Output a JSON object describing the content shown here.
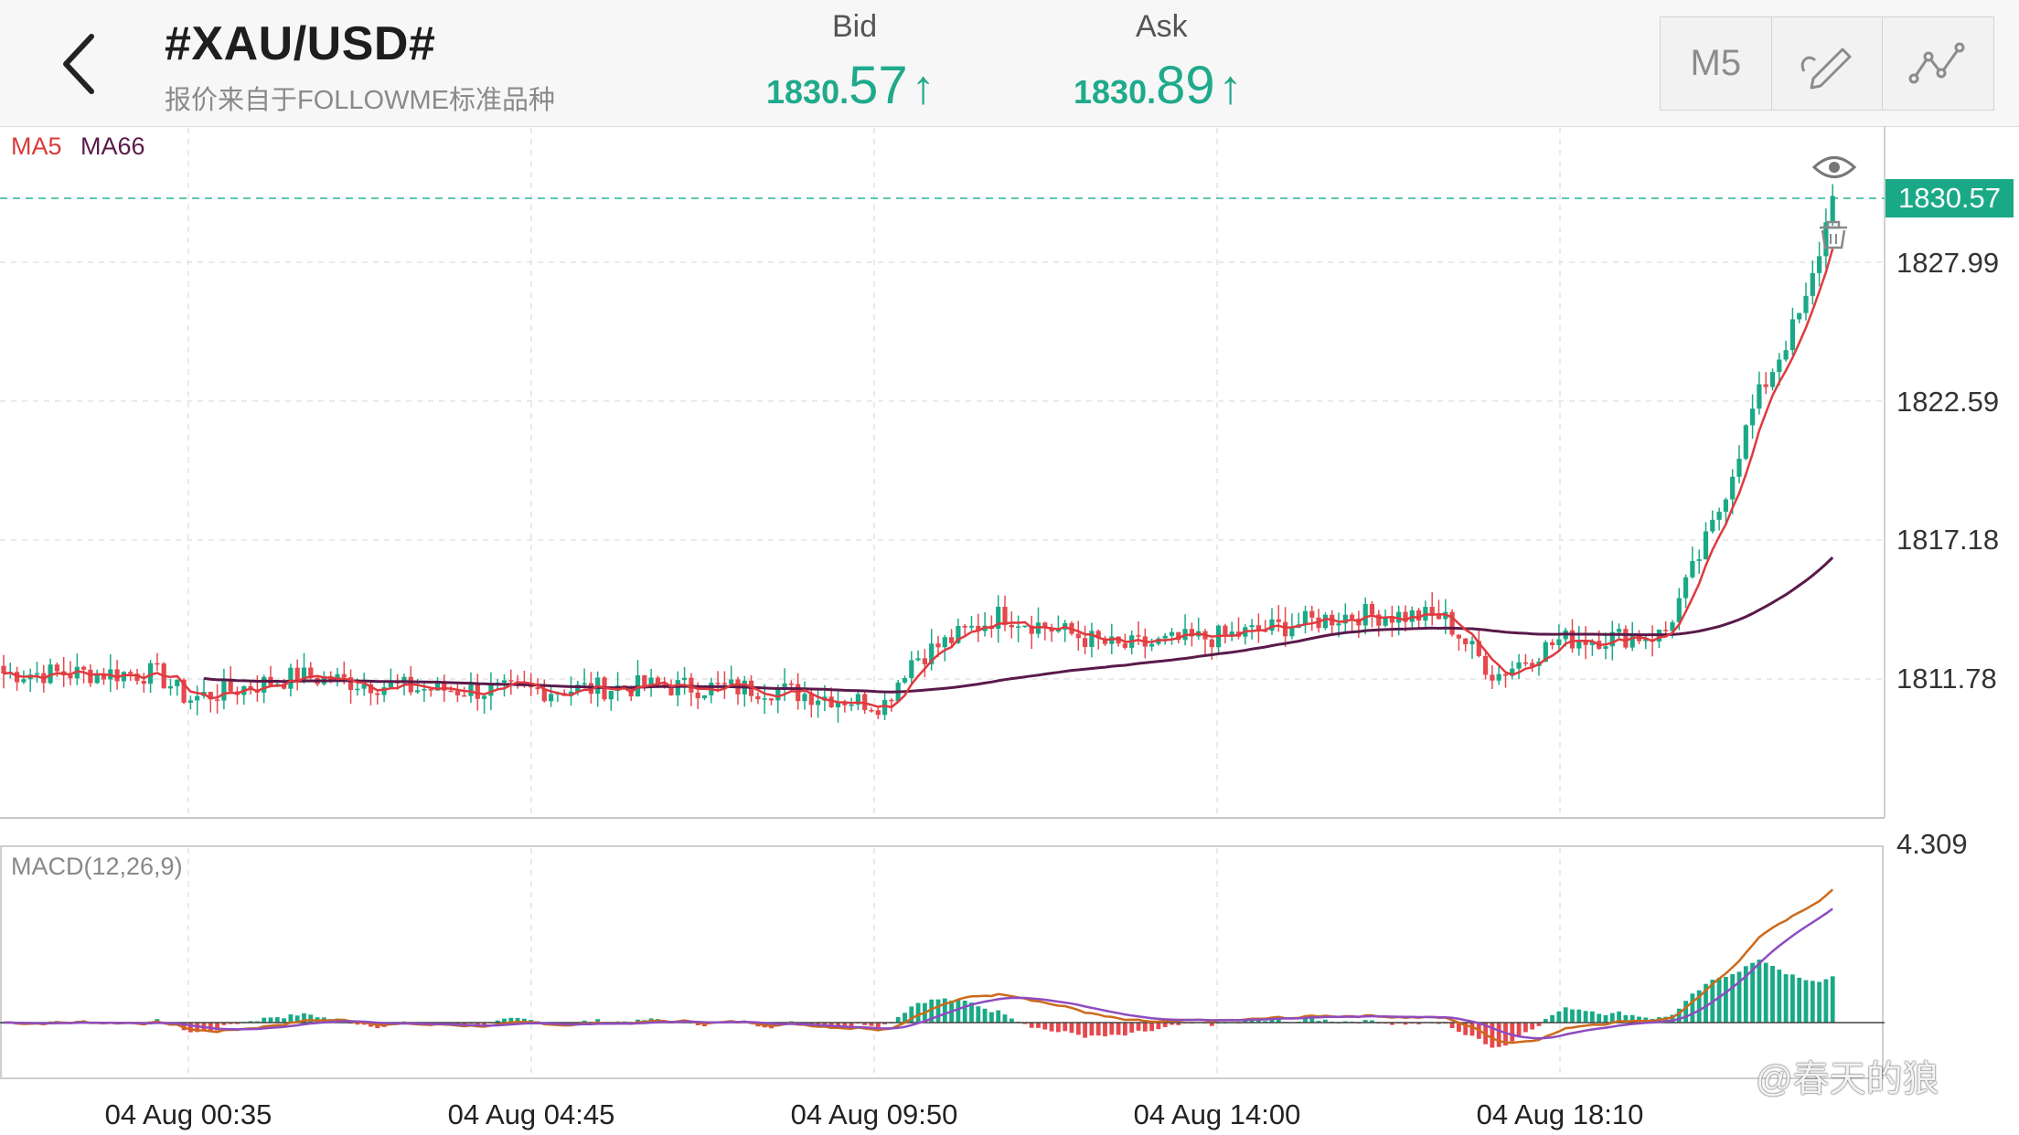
{
  "header": {
    "symbol": "#XAU/USD#",
    "source": "报价来自于FOLLOWME标准品种",
    "bid": {
      "label": "Bid",
      "int_part": "1830.",
      "dec_part": "57",
      "arrow": "↑"
    },
    "ask": {
      "label": "Ask",
      "int_part": "1830.",
      "dec_part": "89",
      "arrow": "↑"
    },
    "timeframe": "M5",
    "icons": [
      "back-arrow-icon",
      "draw-pen-icon",
      "indicator-line-icon"
    ]
  },
  "chart": {
    "indicators": {
      "ma5": "MA5",
      "ma66": "MA66"
    },
    "price_axis": [
      "1827.99",
      "1822.59",
      "1817.18",
      "1811.78"
    ],
    "current_price": "1830.57",
    "time_axis": [
      "04 Aug 00:35",
      "04 Aug 04:45",
      "04 Aug 09:50",
      "04 Aug 14:00",
      "04 Aug 18:10"
    ],
    "macd_label": "MACD(12,26,9)",
    "macd_axis_top": "4.309",
    "watermark": "@春天的狼",
    "colors": {
      "up": "#1aa987",
      "down": "#e5484d",
      "ma5": "#e0393e",
      "ma66": "#5a1a4a",
      "macd": "#cc6a1a",
      "signal": "#8e4cc0",
      "current_line": "#5ec5b0"
    }
  },
  "chart_data": {
    "type": "candlestick",
    "symbol": "#XAU/USD#",
    "timeframe": "M5",
    "y_axis_ticks": [
      1827.99,
      1822.59,
      1817.18,
      1811.78
    ],
    "x_axis_ticks": [
      "04 Aug 00:35",
      "04 Aug 04:45",
      "04 Aug 09:50",
      "04 Aug 14:00",
      "04 Aug 18:10"
    ],
    "current_price": 1830.57,
    "close_path": [
      [
        "04 Aug 00:10",
        1812.0
      ],
      [
        "04 Aug 00:35",
        1811.0
      ],
      [
        "04 Aug 02:00",
        1811.9
      ],
      [
        "04 Aug 03:30",
        1811.4
      ],
      [
        "04 Aug 04:45",
        1811.3
      ],
      [
        "04 Aug 06:30",
        1811.5
      ],
      [
        "04 Aug 08:00",
        1811.4
      ],
      [
        "04 Aug 09:30",
        1810.8
      ],
      [
        "04 Aug 09:50",
        1812.5
      ],
      [
        "04 Aug 11:00",
        1814.3
      ],
      [
        "04 Aug 12:30",
        1813.0
      ],
      [
        "04 Aug 14:00",
        1813.5
      ],
      [
        "04 Aug 15:30",
        1814.3
      ],
      [
        "04 Aug 16:40",
        1814.2
      ],
      [
        "04 Aug 17:20",
        1811.9
      ],
      [
        "04 Aug 18:10",
        1813.3
      ],
      [
        "04 Aug 19:30",
        1813.5
      ],
      [
        "04 Aug 20:10",
        1818.0
      ],
      [
        "04 Aug 20:40",
        1822.5
      ],
      [
        "04 Aug 21:20",
        1826.5
      ],
      [
        "04 Aug 21:40",
        1830.57
      ]
    ],
    "ma5_label": "MA5",
    "ma66_label": "MA66",
    "macd": {
      "label": "MACD(12,26,9)",
      "axis_top": 4.309
    }
  }
}
